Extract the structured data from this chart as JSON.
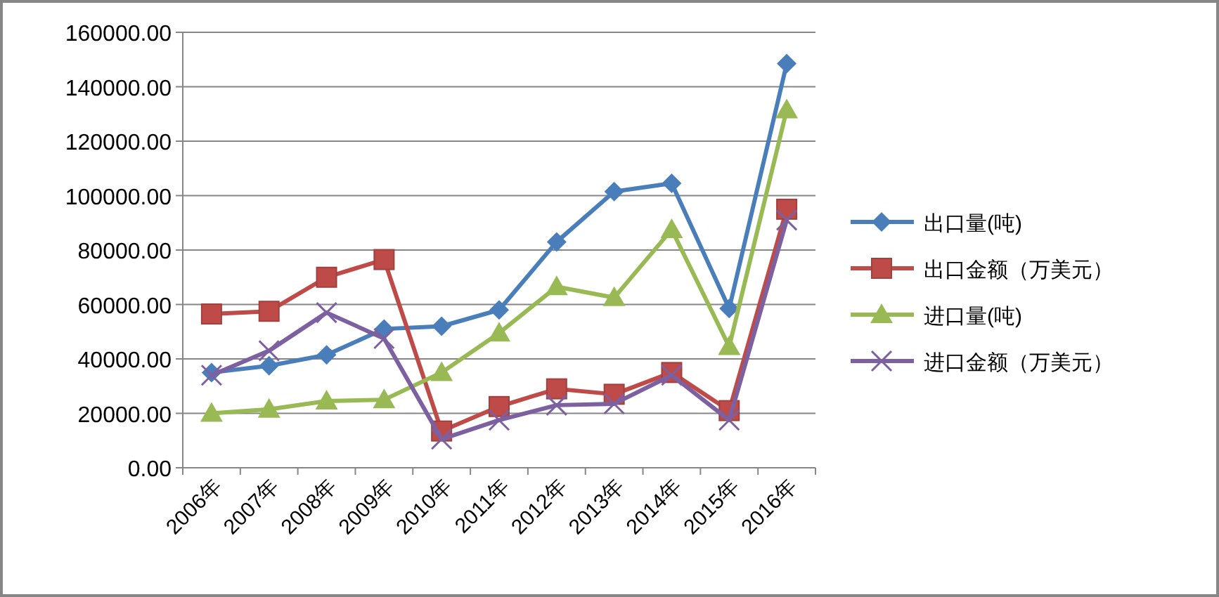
{
  "chart_data": {
    "type": "line",
    "categories": [
      "2006年",
      "2007年",
      "2008年",
      "2009年",
      "2010年",
      "2011年",
      "2012年",
      "2013年",
      "2014年",
      "2015年",
      "2016年"
    ],
    "series": [
      {
        "name": "出口量(吨)",
        "color": "#4a7ebb",
        "marker": "diamond",
        "values": [
          35000,
          37500,
          41500,
          51000,
          52000,
          58000,
          83000,
          101500,
          104500,
          58500,
          148500
        ]
      },
      {
        "name": "出口金额（万美元）",
        "color": "#be4b48",
        "marker": "square",
        "values": [
          56500,
          57500,
          70000,
          76500,
          13500,
          22500,
          29000,
          27000,
          35000,
          21000,
          95000
        ]
      },
      {
        "name": "进口量(吨)",
        "color": "#98b954",
        "marker": "triangle",
        "values": [
          20000,
          21500,
          24500,
          25000,
          35000,
          49500,
          66500,
          62500,
          87500,
          44500,
          131500
        ]
      },
      {
        "name": "进口金额（万美元）",
        "color": "#7d60a0",
        "marker": "cross",
        "values": [
          34000,
          43000,
          57000,
          47500,
          10500,
          17500,
          23000,
          23500,
          34000,
          17500,
          91000
        ]
      }
    ],
    "ylim": [
      0,
      160000
    ],
    "yticks": [
      {
        "value": 0,
        "label": "0.00"
      },
      {
        "value": 20000,
        "label": "20000.00"
      },
      {
        "value": 40000,
        "label": "40000.00"
      },
      {
        "value": 60000,
        "label": "60000.00"
      },
      {
        "value": 80000,
        "label": "80000.00"
      },
      {
        "value": 100000,
        "label": "100000.00"
      },
      {
        "value": 120000,
        "label": "120000.00"
      },
      {
        "value": 140000,
        "label": "140000.00"
      },
      {
        "value": 160000,
        "label": "160000.00"
      }
    ],
    "grid": "y",
    "legend": "right"
  }
}
